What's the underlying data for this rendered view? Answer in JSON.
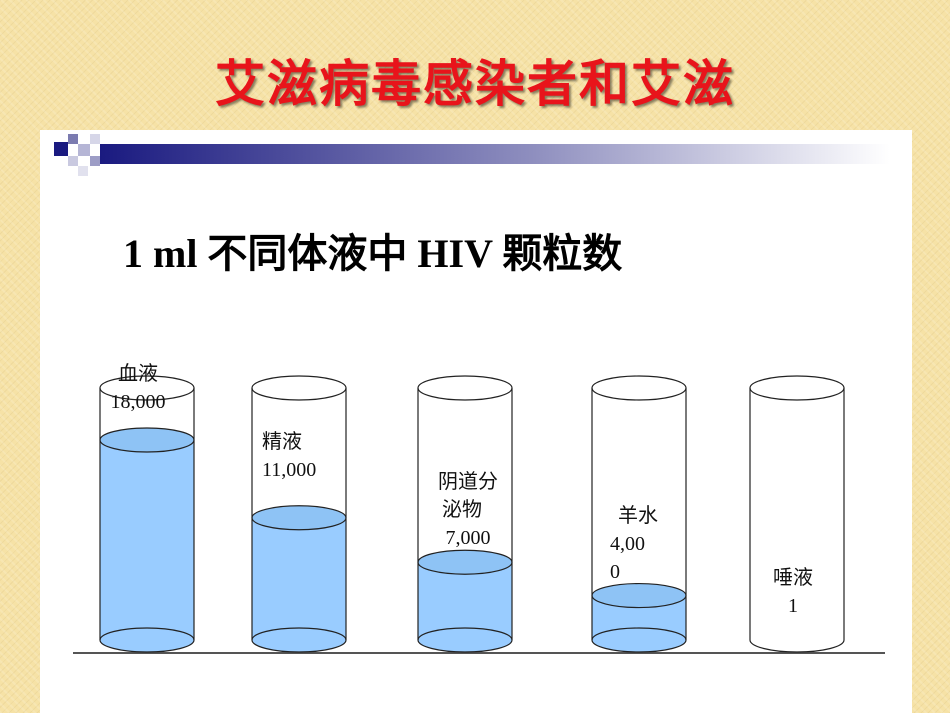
{
  "slide": {
    "title": "艾滋病毒感染者和艾滋",
    "heading": "1 ml  不同体液中 HIV 颗粒数"
  },
  "colors": {
    "title": "#e8141b",
    "liquid": "#99ccff",
    "liquid_top": "#8ec3f5",
    "deco": "#1a1a80"
  },
  "chart_data": {
    "type": "bar",
    "title": "1 ml  不同体液中 HIV 颗粒数",
    "categories": [
      "血液",
      "精液",
      "阴道分泌物",
      "羊水",
      "唾液"
    ],
    "values": [
      18000,
      11000,
      7000,
      4000,
      1
    ],
    "value_labels": [
      "18,000",
      "11,000",
      "7,000",
      "4,000",
      "1"
    ],
    "label_lines": [
      [
        "血液",
        "18,000"
      ],
      [
        "精液",
        "11,000"
      ],
      [
        "阴道分",
        "泌物",
        "7,000"
      ],
      [
        "羊水",
        "4,00",
        "0"
      ],
      [
        "唾液",
        "1"
      ]
    ],
    "ylim": [
      0,
      18000
    ],
    "xlabel": "",
    "ylabel": "",
    "grid": false
  }
}
